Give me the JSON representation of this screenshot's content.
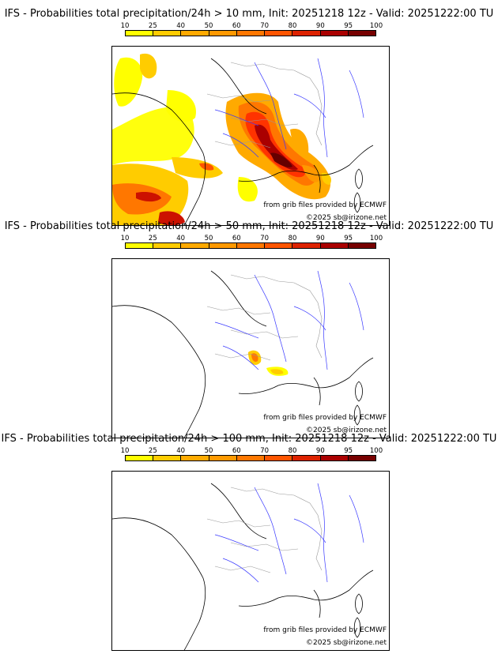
{
  "colorbar": {
    "ticks": [
      "10",
      "25",
      "40",
      "50",
      "60",
      "70",
      "80",
      "90",
      "95",
      "100"
    ],
    "colors": [
      "#ffff00",
      "#ffcc00",
      "#ffaa00",
      "#ff9900",
      "#ff7700",
      "#ff5500",
      "#dd2200",
      "#aa0000",
      "#770000"
    ]
  },
  "map_colors": {
    "coast": "#000000",
    "rivers": "#3a3aff",
    "borders": "#9a9a9a"
  },
  "panels": [
    {
      "title": "IFS - Probabilities total precipitation/24h > 10 mm, Init: 20251218 12z - Valid: 20251222:00 TU",
      "source_note": "from grib files provided by ECMWF",
      "copyright": "©2025 sb@irizone.net"
    },
    {
      "title": "IFS - Probabilities total precipitation/24h > 50 mm, Init: 20251218 12z - Valid: 20251222:00 TU",
      "source_note": "from grib files provided by ECMWF",
      "copyright": "©2025 sb@irizone.net"
    },
    {
      "title": "IFS - Probabilities total precipitation/24h > 100 mm, Init: 20251218 12z - Valid: 20251222:00 TU",
      "source_note": "from grib files provided by ECMWF",
      "copyright": "©2025 sb@irizone.net"
    }
  ]
}
